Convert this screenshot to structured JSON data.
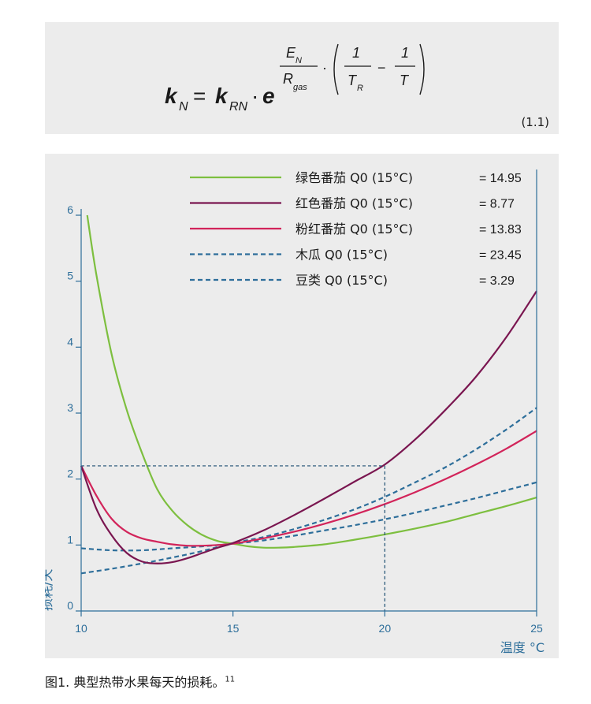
{
  "formula": {
    "k": "k",
    "sub_N": "N",
    "sub_RN": "RN",
    "e": "e",
    "E": "E",
    "R": "R",
    "gas": "gas",
    "one": "1",
    "T": "T",
    "sub_R": "R",
    "eq": "=",
    "dot": "·",
    "minus": "−",
    "number": "(1.1)"
  },
  "caption": {
    "text": "图1. 典型热带水果每天的损耗。",
    "ref": "11"
  },
  "chart_data": {
    "type": "line",
    "xlabel": "温度 °C",
    "ylabel": "损耗/天",
    "xlim": [
      10,
      25
    ],
    "ylim": [
      0,
      6
    ],
    "xticks": [
      10,
      15,
      20,
      25
    ],
    "yticks": [
      0,
      1,
      2,
      3,
      4,
      5,
      6
    ],
    "legend_position": "top",
    "series": [
      {
        "name": "绿色番茄 Q0 (15°C)",
        "value": "= 14.95",
        "color": "#7dbf3f",
        "dashed": false,
        "x": [
          10.2,
          10.5,
          11,
          11.5,
          12,
          12.5,
          13,
          13.5,
          14,
          14.5,
          15,
          15.5,
          16,
          16.5,
          17,
          18,
          19,
          20,
          21,
          22,
          23,
          24,
          25
        ],
        "y": [
          6.0,
          5.1,
          3.9,
          3.05,
          2.4,
          1.85,
          1.52,
          1.3,
          1.15,
          1.06,
          1.02,
          0.98,
          0.96,
          0.96,
          0.97,
          1.01,
          1.08,
          1.16,
          1.25,
          1.35,
          1.47,
          1.59,
          1.72
        ]
      },
      {
        "name": "红色番茄 Q0 (15°C)",
        "value": "= 8.77",
        "color": "#7a1650",
        "dashed": false,
        "x": [
          10,
          10.5,
          11,
          11.5,
          12,
          12.5,
          13,
          13.5,
          14,
          14.5,
          15,
          16,
          17,
          18,
          19,
          20,
          21,
          22,
          23,
          24,
          25
        ],
        "y": [
          2.2,
          1.55,
          1.15,
          0.88,
          0.75,
          0.72,
          0.74,
          0.8,
          0.88,
          0.96,
          1.03,
          1.22,
          1.45,
          1.7,
          1.96,
          2.22,
          2.6,
          3.05,
          3.55,
          4.15,
          4.85
        ]
      },
      {
        "name": "粉红番茄 Q0 (15°C)",
        "value": "= 13.83",
        "color": "#d2245a",
        "dashed": false,
        "x": [
          10,
          10.5,
          11,
          11.5,
          12,
          12.5,
          13,
          13.5,
          14,
          14.5,
          15,
          16,
          17,
          18,
          19,
          20,
          21,
          22,
          23,
          24,
          25
        ],
        "y": [
          2.2,
          1.75,
          1.4,
          1.2,
          1.1,
          1.05,
          1.01,
          0.99,
          0.99,
          1.0,
          1.02,
          1.1,
          1.2,
          1.32,
          1.46,
          1.62,
          1.8,
          2.0,
          2.22,
          2.46,
          2.73
        ]
      },
      {
        "name": "木瓜 Q0 (15°C)",
        "value": "= 23.45",
        "color": "#2d6e9a",
        "dashed": true,
        "x": [
          10,
          11,
          12,
          13,
          14,
          15,
          16,
          17,
          18,
          19,
          20,
          21,
          22,
          23,
          24,
          25
        ],
        "y": [
          0.57,
          0.64,
          0.72,
          0.81,
          0.91,
          1.03,
          1.12,
          1.24,
          1.38,
          1.54,
          1.73,
          1.95,
          2.18,
          2.45,
          2.75,
          3.08
        ]
      },
      {
        "name": "豆类 Q0 (15°C)",
        "value": "= 3.29",
        "color": "#2d6e9a",
        "dashed": true,
        "x": [
          10,
          11,
          12,
          13,
          14,
          15,
          16,
          17,
          18,
          19,
          20,
          21,
          22,
          23,
          24,
          25
        ],
        "y": [
          0.95,
          0.92,
          0.92,
          0.95,
          0.98,
          1.02,
          1.07,
          1.14,
          1.22,
          1.3,
          1.39,
          1.49,
          1.6,
          1.71,
          1.83,
          1.95
        ]
      }
    ],
    "reference_lines": {
      "x": 20,
      "y": 2.2
    }
  },
  "colors": {
    "axis": "#2d6e9a",
    "panel": "#ececec",
    "text": "#1a1a1a"
  }
}
